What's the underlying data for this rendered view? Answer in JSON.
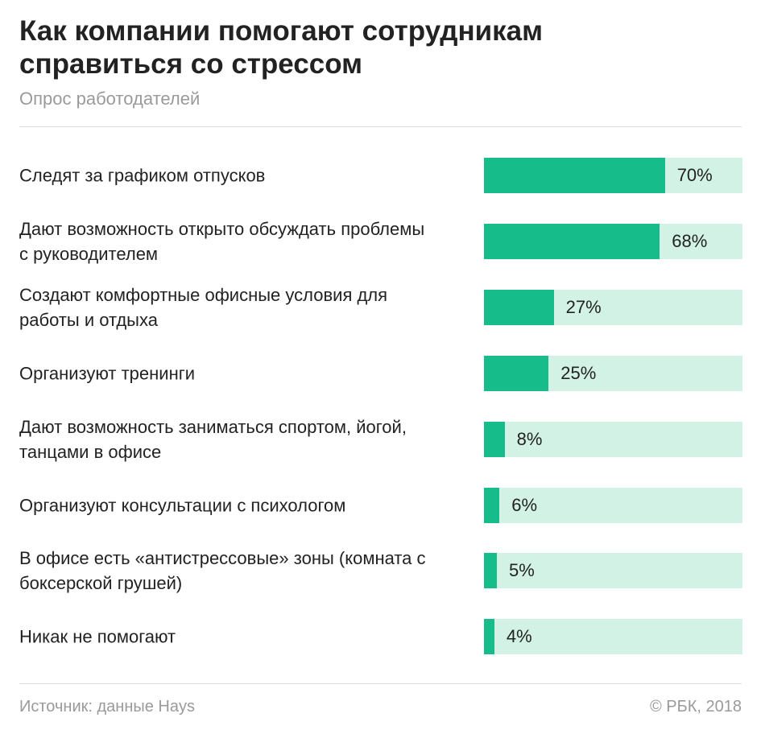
{
  "chart_data": {
    "type": "bar",
    "orientation": "horizontal",
    "title": "Как компании помогают сотрудникам справиться со стрессом",
    "subtitle": "Опрос работодателей",
    "categories": [
      "Следят за графиком отпусков",
      "Дают возможность открыто обсуждать проблемы с руководителем",
      "Создают комфортные офисные условия для работы и отдыха",
      "Организуют тренинги",
      "Дают возможность заниматься спортом, йогой, танцами в офисе",
      "Организуют консультации с психологом",
      "В офисе есть «антистрессовые» зоны (комната с боксерской грушей)",
      "Никак не помогают"
    ],
    "values": [
      70,
      68,
      27,
      25,
      8,
      6,
      5,
      4
    ],
    "value_labels": [
      "70%",
      "68%",
      "27%",
      "25%",
      "8%",
      "6%",
      "5%",
      "4%"
    ],
    "color": "#16bd8a",
    "track_color": "#d3f2e6",
    "xlim": [
      0,
      100
    ],
    "source": "Источник: данные Hays",
    "credit": "© РБК, 2018"
  }
}
